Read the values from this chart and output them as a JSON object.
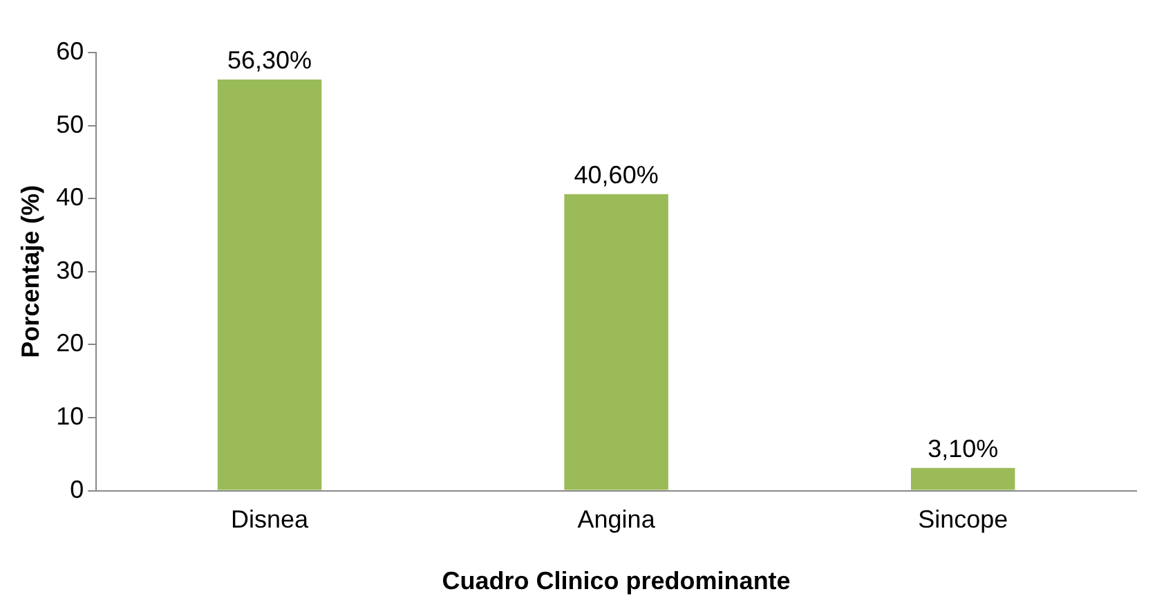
{
  "chart_data": {
    "type": "bar",
    "xlabel": "Cuadro Clinico predominante",
    "ylabel": "Porcentaje (%)",
    "categories": [
      "Disnea",
      "Angina",
      "Sincope"
    ],
    "values": [
      56.3,
      40.6,
      3.1
    ],
    "value_labels": [
      "56,30%",
      "40,60%",
      "3,10%"
    ],
    "color": "#9bbb59",
    "ylim": [
      0,
      60
    ],
    "yticks": [
      0,
      10,
      20,
      30,
      40,
      50,
      60
    ],
    "grid": false,
    "legend": false
  }
}
